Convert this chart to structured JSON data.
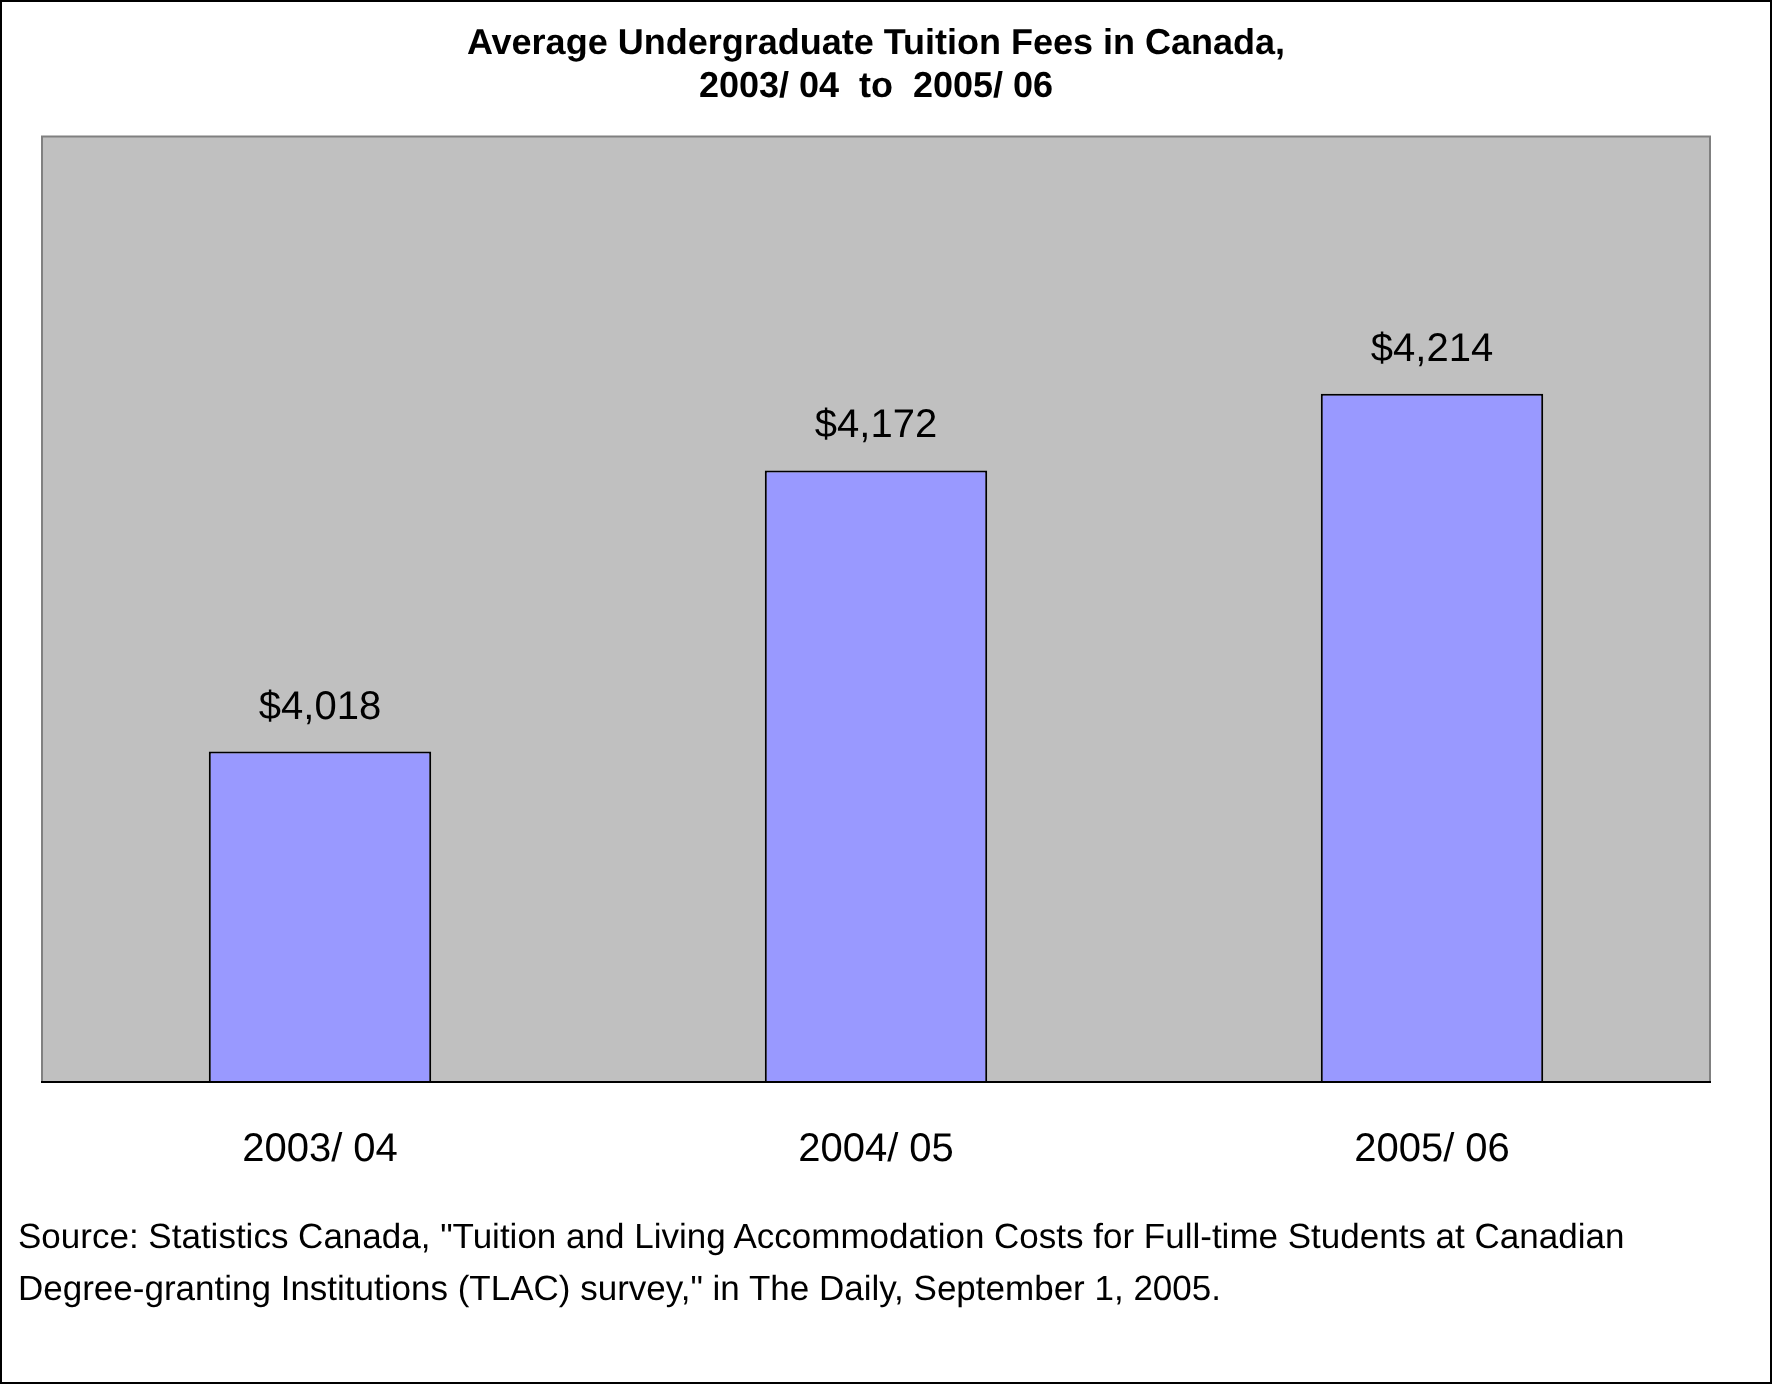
{
  "chart_data": {
    "type": "bar",
    "title": "Average Undergraduate Tuition Fees in Canada,\n2003/ 04  to  2005/ 06",
    "categories": [
      "2003/ 04",
      "2004/ 05",
      "2005/ 06"
    ],
    "values": [
      4018,
      4172,
      4214
    ],
    "value_labels": [
      "$4,018",
      "$4,172",
      "$4,214"
    ],
    "color": "#9999ff",
    "ylim": [
      3837,
      4355
    ],
    "tick_labels": "x",
    "grid": false,
    "legend": false,
    "annotations": [
      "Source: Statistics Canada, \"Tuition and Living Accommodation Costs for Full-time Students at Canadian Degree-granting Institutions (TLAC) survey,\" in The Daily, September 1, 2005."
    ]
  }
}
